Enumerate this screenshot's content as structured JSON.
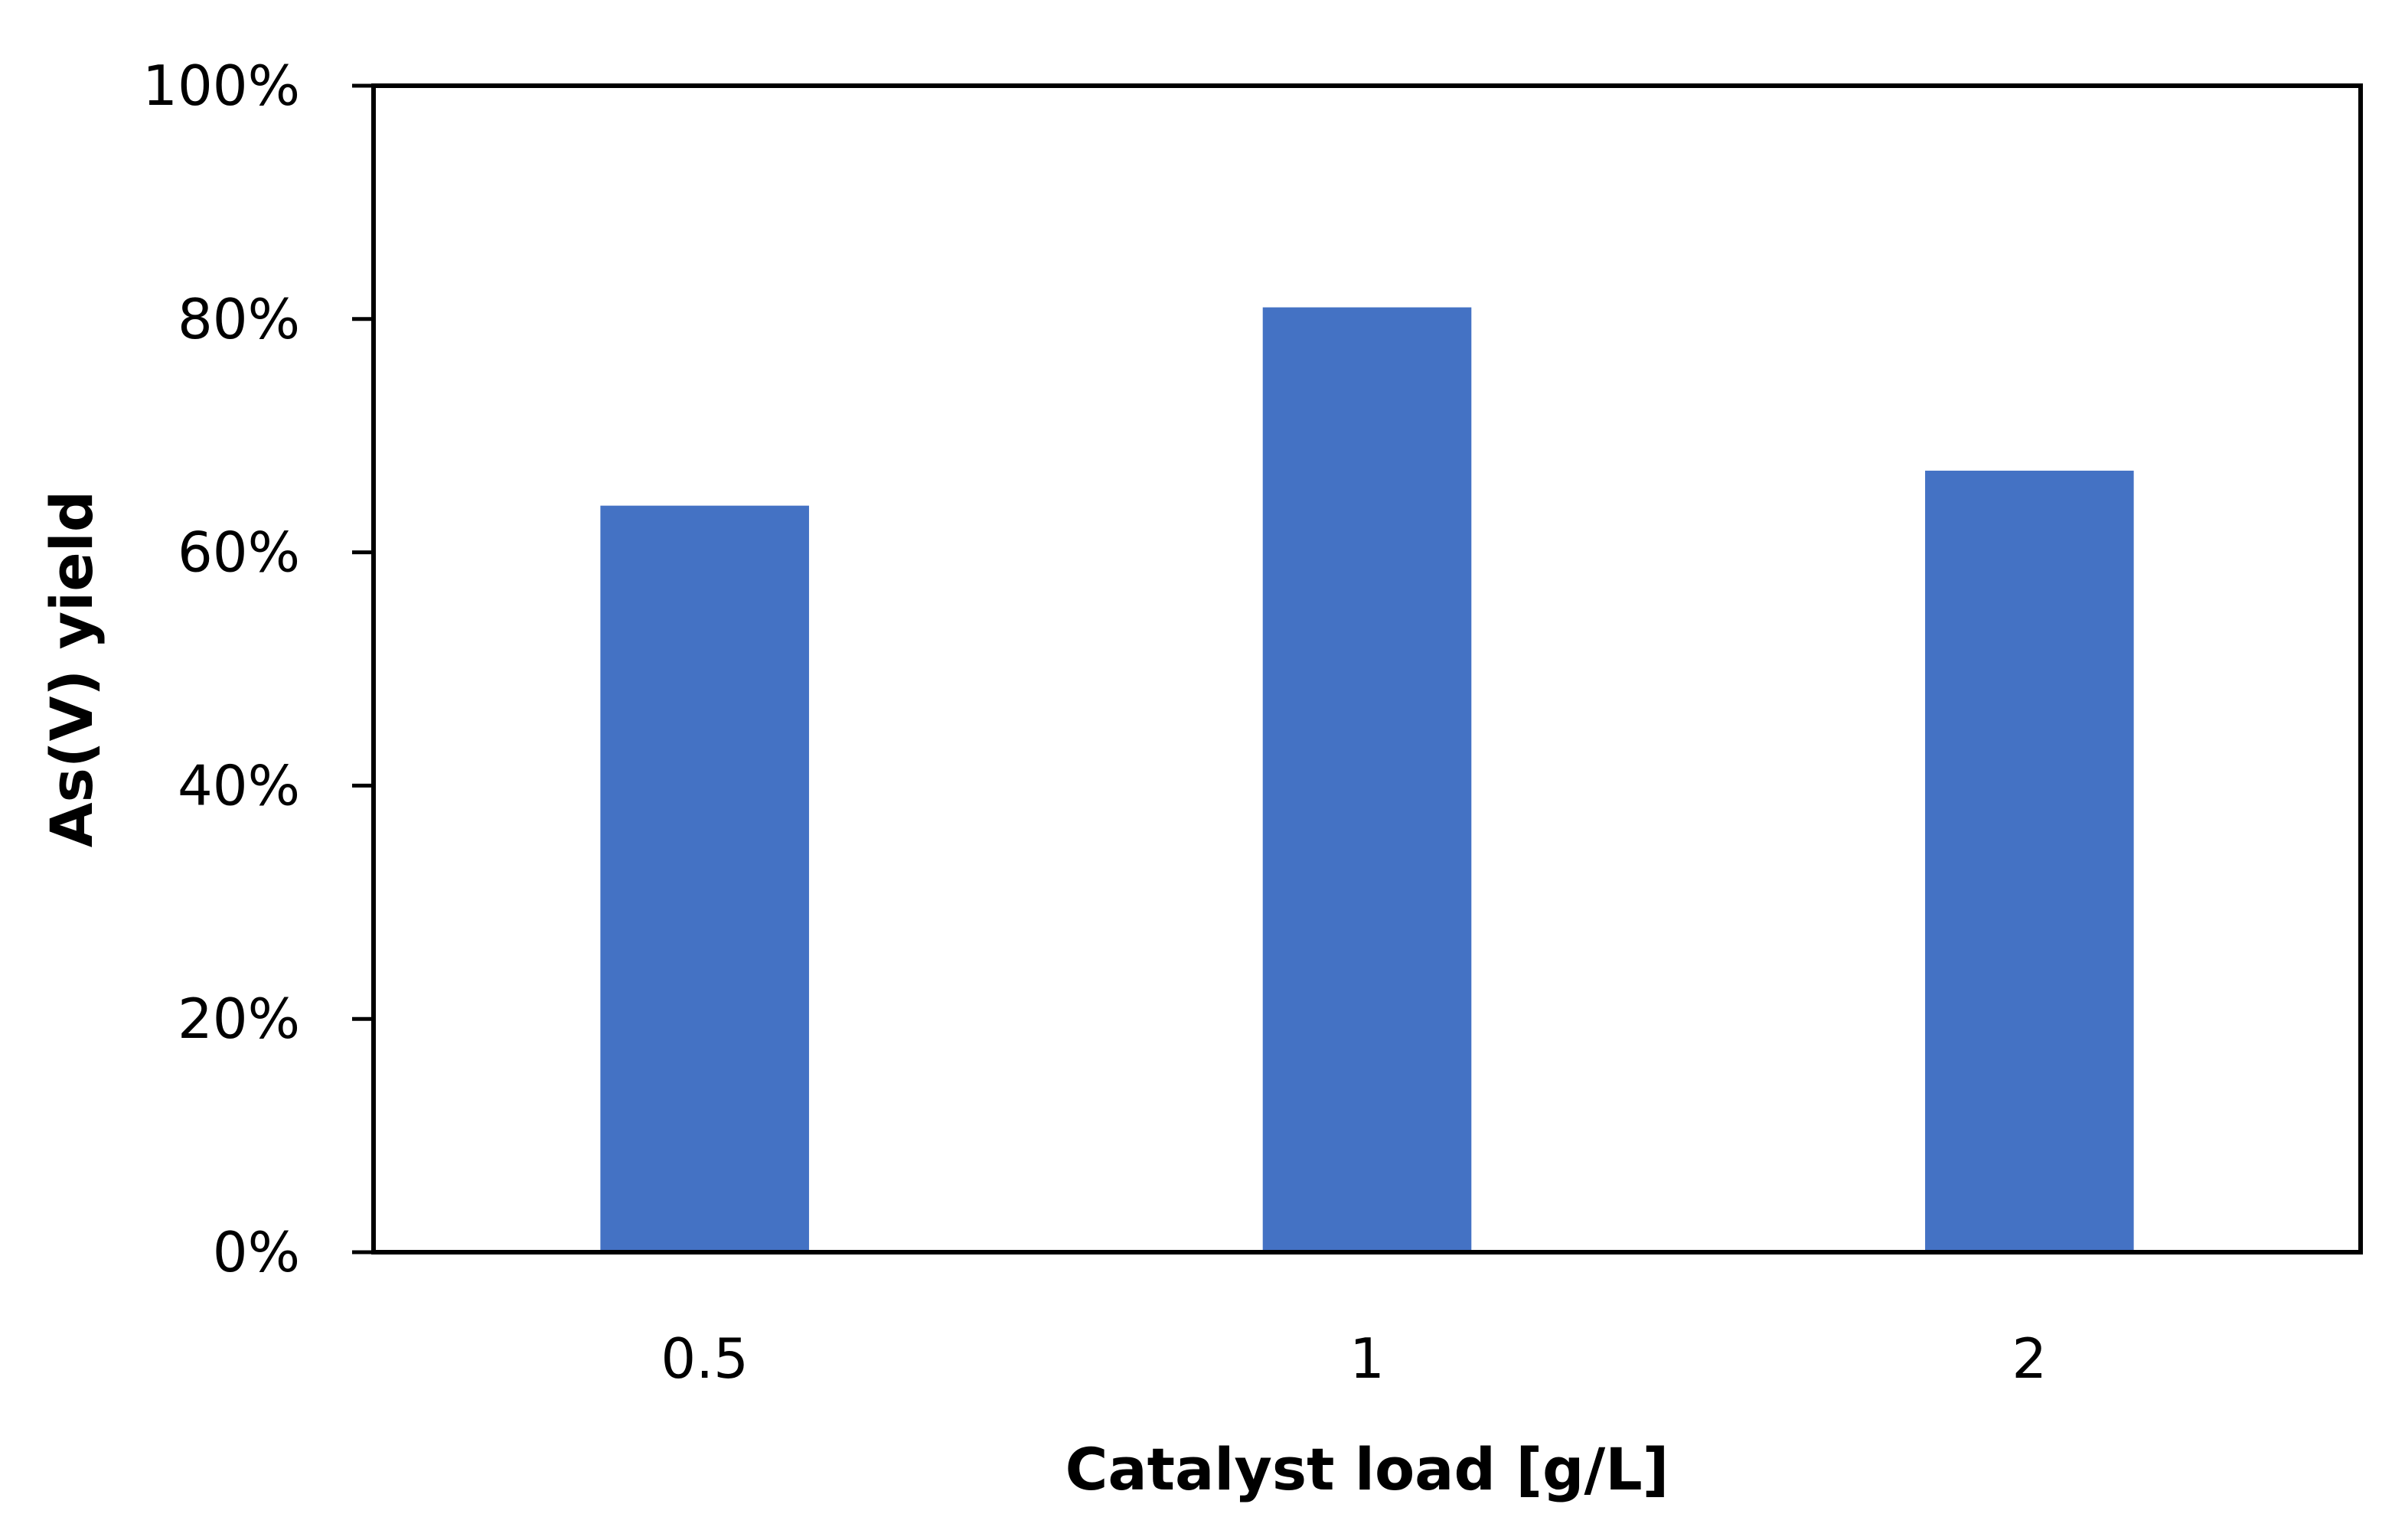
{
  "chart_data": {
    "type": "bar",
    "title": "",
    "xlabel": "Catalyst load [g/L]",
    "ylabel": "As(V) yield",
    "categories": [
      "0.5",
      "1",
      "2"
    ],
    "series": [
      {
        "values": [
          64,
          81,
          67
        ],
        "color": "#4472C4"
      }
    ],
    "ylim": [
      0,
      100
    ],
    "yticks": [
      0,
      20,
      40,
      60,
      80,
      100
    ],
    "ytick_labels": [
      "0%",
      "20%",
      "40%",
      "60%",
      "80%",
      "100%"
    ],
    "grid": false,
    "legend": "none"
  }
}
